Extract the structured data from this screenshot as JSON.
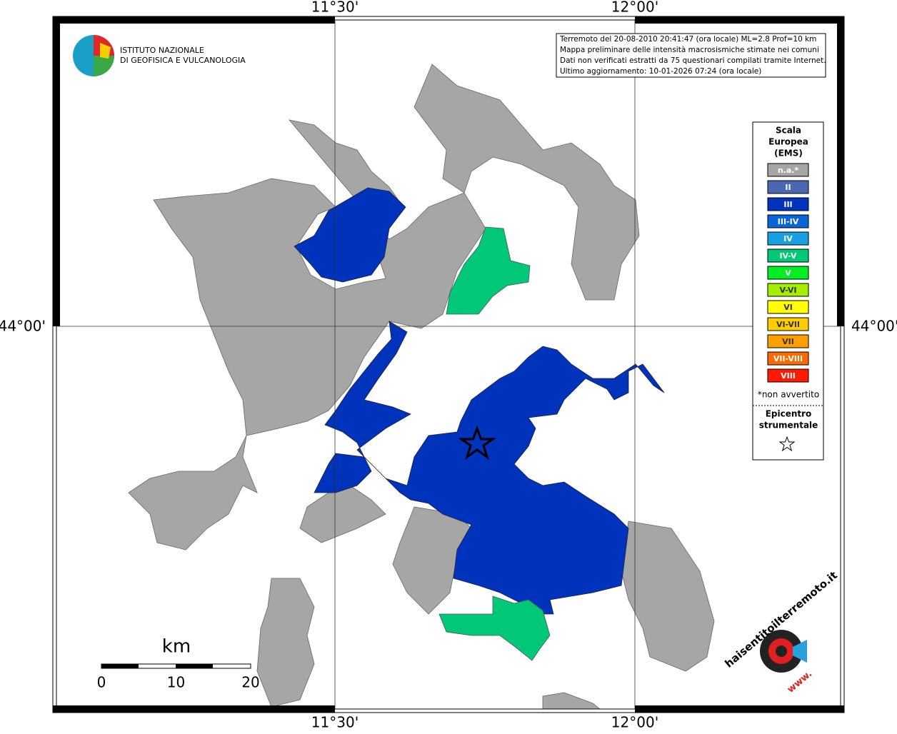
{
  "graticule": {
    "lon": [
      "11°30'",
      "12°00'"
    ],
    "lat": [
      "44°00'"
    ]
  },
  "info": [
    "Terremoto del 20-08-2010 20:41:47 (ora locale) ML=2.8 Prof=10 km",
    "Mappa preliminare delle intensità macrosismiche stimate nei comuni",
    "Dati non verificati estratti da 75 questionari compilati tramite Internet.",
    "Ultimo aggiornamento: 10-01-2026 07:24 (ora locale)"
  ],
  "logo": [
    "ISTITUTO NAZIONALE",
    "DI GEOFISICA E VULCANOLOGIA"
  ],
  "legend": {
    "title": [
      "Scala",
      "Europea",
      "(EMS)"
    ],
    "items": [
      {
        "label": "n.a.*",
        "color": "#a6a6a6"
      },
      {
        "label": "II",
        "color": "#4a68b0"
      },
      {
        "label": "III",
        "color": "#0033bb"
      },
      {
        "label": "III-IV",
        "color": "#0a66d8"
      },
      {
        "label": "IV",
        "color": "#1aa0e0"
      },
      {
        "label": "IV-V",
        "color": "#00c878"
      },
      {
        "label": "V",
        "color": "#00ee22"
      },
      {
        "label": "V-VI",
        "color": "#a6ee00"
      },
      {
        "label": "VI",
        "color": "#ffff00"
      },
      {
        "label": "VI-VII",
        "color": "#ffcc00"
      },
      {
        "label": "VII",
        "color": "#ffa000"
      },
      {
        "label": "VII-VIII",
        "color": "#ff6a00"
      },
      {
        "label": "VIII",
        "color": "#ff1a00"
      }
    ],
    "note": "*non avvertito",
    "epicenter": [
      "Epicentro",
      "strumentale"
    ]
  },
  "scale_bar": {
    "unit": "km",
    "labels": [
      "0",
      "10",
      "20"
    ]
  },
  "site_logo": {
    "name": "haisentitoilterremoto.it",
    "www": "www."
  }
}
